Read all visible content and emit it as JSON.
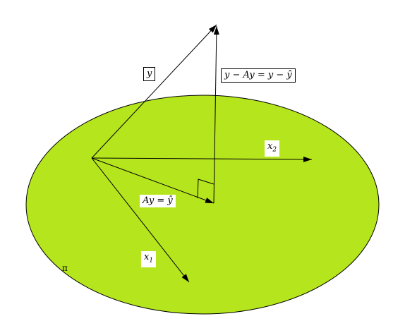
{
  "diagram": {
    "plane": {
      "label": "π",
      "fill": "#b5e51d",
      "stroke": "#000000"
    },
    "vectors": {
      "y": {
        "label": "y"
      },
      "residual": {
        "label": "y − Ay = y − ŷ"
      },
      "x2": {
        "label": "x",
        "subscript": "2"
      },
      "projection": {
        "label": "Ay = ŷ"
      },
      "x1": {
        "label": "x",
        "subscript": "1"
      }
    },
    "right_angle_marker": true
  }
}
